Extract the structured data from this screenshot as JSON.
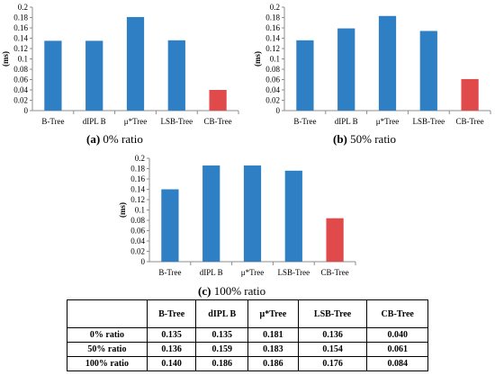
{
  "chart_data": [
    {
      "type": "bar",
      "label": "(a)",
      "caption": "0% ratio",
      "categories": [
        "B-Tree",
        "dIPL B",
        "μ*Tree",
        "LSB-Tree",
        "CB-Tree"
      ],
      "values": [
        0.135,
        0.135,
        0.181,
        0.136,
        0.04
      ],
      "colors": [
        "#2e7fc4",
        "#2e7fc4",
        "#2e7fc4",
        "#2e7fc4",
        "#e04a4a"
      ],
      "ylabel": "(ms)",
      "ylim": [
        0,
        0.2
      ],
      "yticks": [
        "0",
        "0.02",
        "0.04",
        "0.06",
        "0.08",
        "0.1",
        "0.12",
        "0.14",
        "0.16",
        "0.18",
        "0.2"
      ]
    },
    {
      "type": "bar",
      "label": "(b)",
      "caption": "50% ratio",
      "categories": [
        "B-Tree",
        "dIPL B",
        "μ*Tree",
        "LSB-Tree",
        "CB-Tree"
      ],
      "values": [
        0.136,
        0.159,
        0.183,
        0.154,
        0.061
      ],
      "colors": [
        "#2e7fc4",
        "#2e7fc4",
        "#2e7fc4",
        "#2e7fc4",
        "#e04a4a"
      ],
      "ylabel": "(ms)",
      "ylim": [
        0,
        0.2
      ],
      "yticks": [
        "0",
        "0.02",
        "0.04",
        "0.06",
        "0.08",
        "0.1",
        "0.12",
        "0.14",
        "0.16",
        "0.18",
        "0.2"
      ]
    },
    {
      "type": "bar",
      "label": "(c)",
      "caption": "100% ratio",
      "categories": [
        "B-Tree",
        "dIPL B",
        "μ*Tree",
        "LSB-Tree",
        "CB-Tree"
      ],
      "values": [
        0.14,
        0.186,
        0.186,
        0.176,
        0.084
      ],
      "colors": [
        "#2e7fc4",
        "#2e7fc4",
        "#2e7fc4",
        "#2e7fc4",
        "#e04a4a"
      ],
      "ylabel": "(ms)",
      "ylim": [
        0,
        0.2
      ],
      "yticks": [
        "0",
        "0.02",
        "0.04",
        "0.06",
        "0.08",
        "0.1",
        "0.12",
        "0.14",
        "0.16",
        "0.18",
        "0.2"
      ]
    }
  ],
  "table": {
    "headers": [
      "",
      "B-Tree",
      "dIPL B",
      "μ*Tree",
      "LSB-Tree",
      "CB-Tree"
    ],
    "rows": [
      [
        "0% ratio",
        "0.135",
        "0.135",
        "0.181",
        "0.136",
        "0.040"
      ],
      [
        "50% ratio",
        "0.136",
        "0.159",
        "0.183",
        "0.154",
        "0.061"
      ],
      [
        "100% ratio",
        "0.140",
        "0.186",
        "0.186",
        "0.176",
        "0.084"
      ]
    ]
  }
}
